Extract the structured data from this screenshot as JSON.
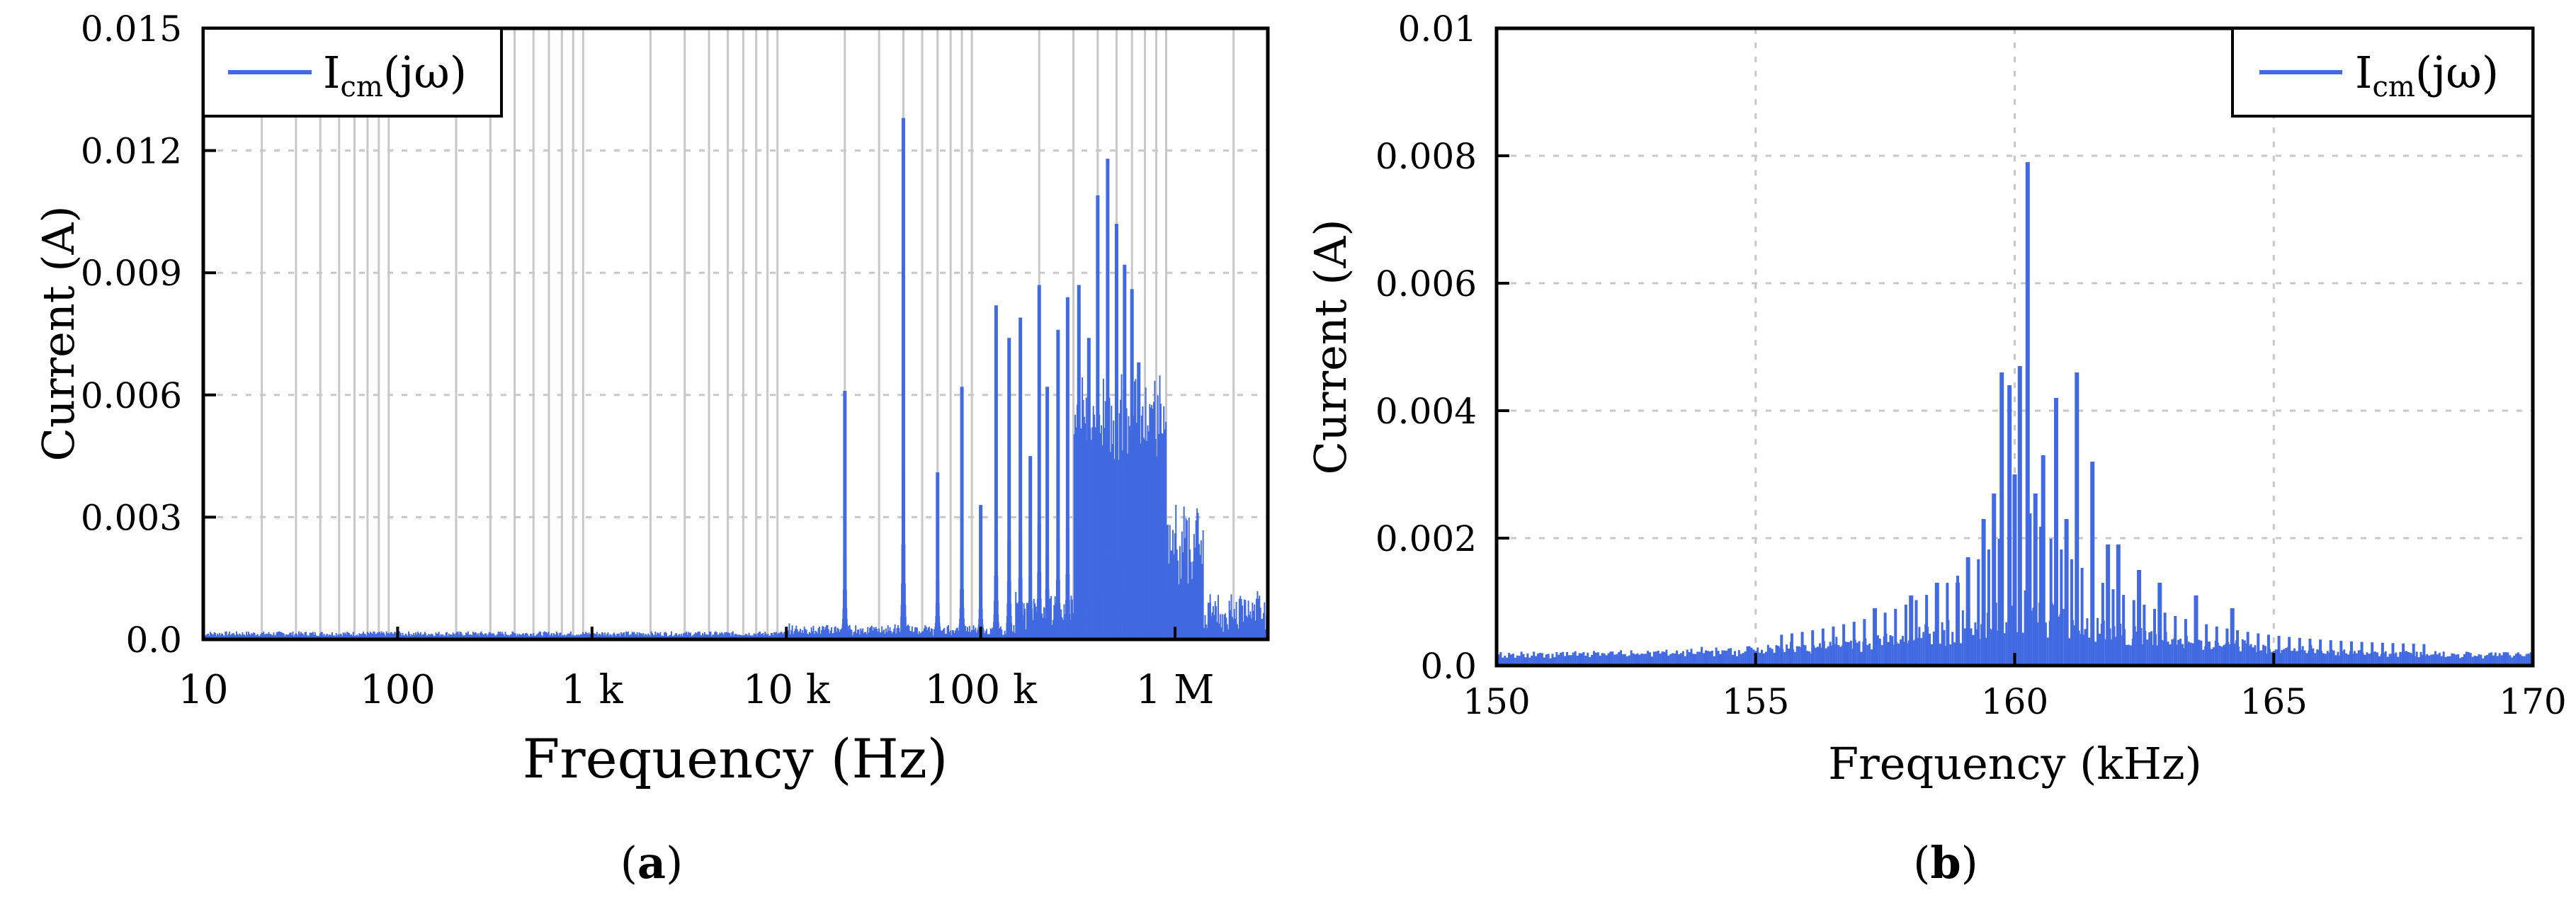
{
  "colors": {
    "series": "#4169e1",
    "grid_major": "#c8c8c8",
    "grid_dash": "#c8c8c8",
    "axis": "#000000"
  },
  "chart_data": [
    {
      "panel_label": "(a)",
      "type": "bar",
      "x_scale": "log",
      "xlim": [
        10,
        3000000
      ],
      "ylim": [
        0,
        0.015
      ],
      "xlabel": "Frequency (Hz)",
      "ylabel": "Current (A)",
      "x_ticks": [
        {
          "v": 10,
          "label": "10"
        },
        {
          "v": 100,
          "label": "100"
        },
        {
          "v": 1000,
          "label": "1 k"
        },
        {
          "v": 10000,
          "label": "10 k"
        },
        {
          "v": 100000,
          "label": "100 k"
        },
        {
          "v": 1000000,
          "label": "1 M"
        }
      ],
      "y_ticks": [
        {
          "v": 0,
          "label": "0.0"
        },
        {
          "v": 0.003,
          "label": "0.003"
        },
        {
          "v": 0.006,
          "label": "0.006"
        },
        {
          "v": 0.009,
          "label": "0.009"
        },
        {
          "v": 0.012,
          "label": "0.012"
        },
        {
          "v": 0.015,
          "label": "0.015"
        }
      ],
      "grid": "vertical log minor lines + horizontal dashed",
      "legend": {
        "position": "top-left",
        "entry": "Icm(jω)"
      },
      "series": [
        {
          "name": "Icm(jω)",
          "peaks": [
            {
              "f": 20000,
              "i": 0.0061
            },
            {
              "f": 40000,
              "i": 0.0128
            },
            {
              "f": 60000,
              "i": 0.0041
            },
            {
              "f": 80000,
              "i": 0.0062
            },
            {
              "f": 100000,
              "i": 0.0033
            },
            {
              "f": 120000,
              "i": 0.0082
            },
            {
              "f": 140000,
              "i": 0.0074
            },
            {
              "f": 160000,
              "i": 0.0079
            },
            {
              "f": 180000,
              "i": 0.0045
            },
            {
              "f": 200000,
              "i": 0.0087
            },
            {
              "f": 220000,
              "i": 0.0062
            },
            {
              "f": 250000,
              "i": 0.0076
            },
            {
              "f": 280000,
              "i": 0.0084
            },
            {
              "f": 320000,
              "i": 0.0087
            },
            {
              "f": 360000,
              "i": 0.0074
            },
            {
              "f": 400000,
              "i": 0.0109
            },
            {
              "f": 450000,
              "i": 0.0118
            },
            {
              "f": 500000,
              "i": 0.0102
            },
            {
              "f": 550000,
              "i": 0.0092
            },
            {
              "f": 600000,
              "i": 0.0086
            },
            {
              "f": 650000,
              "i": 0.0068
            },
            {
              "f": 750000,
              "i": 0.0041
            },
            {
              "f": 900000,
              "i": 0.0028
            },
            {
              "f": 1100000,
              "i": 0.0016
            },
            {
              "f": 1500000,
              "i": 0.0009
            },
            {
              "f": 2000000,
              "i": 0.0005
            },
            {
              "f": 2800000,
              "i": 0.0005
            }
          ]
        }
      ]
    },
    {
      "panel_label": "(b)",
      "type": "bar",
      "x_scale": "linear",
      "xlim": [
        150,
        170
      ],
      "ylim": [
        0,
        0.01
      ],
      "xlabel": "Frequency (kHz)",
      "ylabel": "Current (A)",
      "x_ticks": [
        {
          "v": 150,
          "label": "150"
        },
        {
          "v": 155,
          "label": "155"
        },
        {
          "v": 160,
          "label": "160"
        },
        {
          "v": 165,
          "label": "165"
        },
        {
          "v": 170,
          "label": "170"
        }
      ],
      "y_ticks": [
        {
          "v": 0,
          "label": "0.0"
        },
        {
          "v": 0.002,
          "label": "0.002"
        },
        {
          "v": 0.004,
          "label": "0.004"
        },
        {
          "v": 0.006,
          "label": "0.006"
        },
        {
          "v": 0.008,
          "label": "0.008"
        },
        {
          "v": 0.01,
          "label": "0.01"
        }
      ],
      "grid": "dashed both axes",
      "legend": {
        "position": "top-right",
        "entry": "Icm(jω)"
      },
      "series": [
        {
          "name": "Icm(jω)",
          "peaks": [
            {
              "f": 157.3,
              "i": 0.0009
            },
            {
              "f": 158.0,
              "i": 0.0011
            },
            {
              "f": 158.5,
              "i": 0.0013
            },
            {
              "f": 158.9,
              "i": 0.0013
            },
            {
              "f": 159.1,
              "i": 0.0017
            },
            {
              "f": 159.4,
              "i": 0.0023
            },
            {
              "f": 159.6,
              "i": 0.0027
            },
            {
              "f": 159.75,
              "i": 0.0046
            },
            {
              "f": 159.9,
              "i": 0.0044
            },
            {
              "f": 160.0,
              "i": 0.003
            },
            {
              "f": 160.1,
              "i": 0.0047
            },
            {
              "f": 160.25,
              "i": 0.0079
            },
            {
              "f": 160.4,
              "i": 0.0027
            },
            {
              "f": 160.55,
              "i": 0.0033
            },
            {
              "f": 160.8,
              "i": 0.0042
            },
            {
              "f": 161.0,
              "i": 0.0023
            },
            {
              "f": 161.2,
              "i": 0.0046
            },
            {
              "f": 161.5,
              "i": 0.0032
            },
            {
              "f": 161.8,
              "i": 0.0019
            },
            {
              "f": 162.0,
              "i": 0.0019
            },
            {
              "f": 162.4,
              "i": 0.0015
            },
            {
              "f": 162.8,
              "i": 0.0013
            },
            {
              "f": 163.5,
              "i": 0.0011
            },
            {
              "f": 164.2,
              "i": 0.0009
            }
          ]
        }
      ]
    }
  ]
}
